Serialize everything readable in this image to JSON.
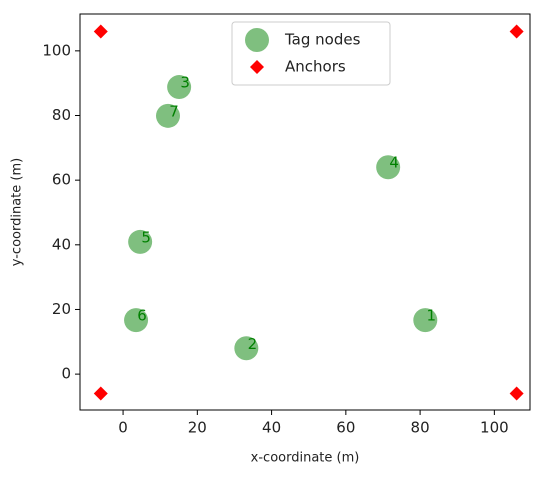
{
  "chart_data": {
    "type": "scatter",
    "xlabel": "x-coordinate (m)",
    "ylabel": "y-coordinate (m)",
    "xlim": [
      -11.6,
      109.6
    ],
    "ylim": [
      -11.1,
      111.4
    ],
    "xticks": [
      0,
      20,
      40,
      60,
      80,
      100
    ],
    "yticks": [
      0,
      20,
      40,
      60,
      80,
      100
    ],
    "legend": "upper center",
    "series": [
      {
        "name": "Tag nodes",
        "color": "green",
        "marker": "circle",
        "x": [
          81.4,
          33.2,
          15.1,
          71.4,
          4.6,
          3.5,
          12.1
        ],
        "values": [
          16.7,
          8.0,
          88.8,
          64.0,
          40.9,
          16.7,
          79.9
        ],
        "labels": [
          "1",
          "2",
          "3",
          "4",
          "5",
          "6",
          "7"
        ]
      },
      {
        "name": "Anchors",
        "color": "red",
        "marker": "diamond",
        "x": [
          -6,
          106,
          -6,
          106
        ],
        "values": [
          106,
          106,
          -6,
          -6
        ]
      }
    ]
  }
}
